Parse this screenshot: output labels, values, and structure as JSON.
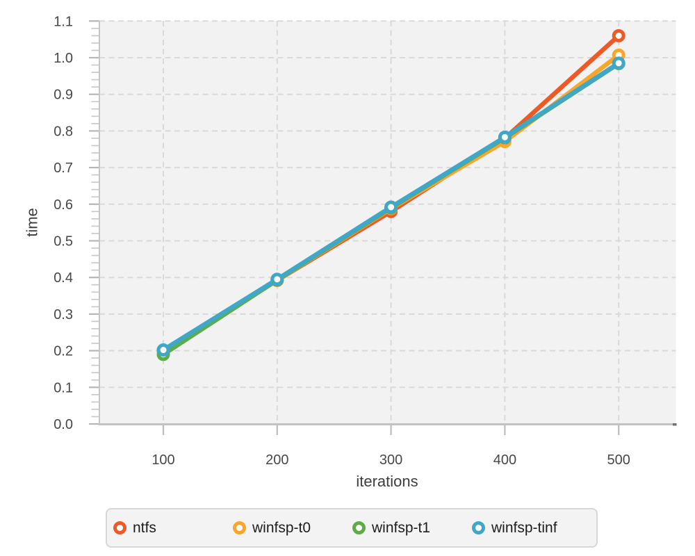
{
  "chart_data": {
    "type": "line",
    "title": "",
    "xlabel": "iterations",
    "ylabel": "time",
    "x": [
      100,
      200,
      300,
      400,
      500
    ],
    "xtick_labels": [
      "100",
      "200",
      "300",
      "400",
      "500"
    ],
    "ytick_labels": [
      "0.0",
      "0.1",
      "0.2",
      "0.3",
      "0.4",
      "0.5",
      "0.6",
      "0.7",
      "0.8",
      "0.9",
      "1.0",
      "1.1"
    ],
    "xlim": [
      44,
      551
    ],
    "ylim": [
      0,
      1.1
    ],
    "y_minor_tick_step": 0.02,
    "grid": "dashed",
    "legend_position": "bottom",
    "marker": "open-circle",
    "panel_bg": "#f2f2f2",
    "grid_color": "#d9d9d9",
    "series": [
      {
        "name": "ntfs",
        "color": "#ed5a28",
        "values": [
          0.2,
          0.392,
          0.58,
          0.78,
          1.06
        ]
      },
      {
        "name": "winfsp-t0",
        "color": "#f8a72c",
        "values": [
          0.2,
          0.392,
          0.588,
          0.771,
          1.007
        ]
      },
      {
        "name": "winfsp-t1",
        "color": "#5cad48",
        "values": [
          0.19,
          0.393,
          0.59,
          0.781,
          0.984
        ]
      },
      {
        "name": "winfsp-tinf",
        "color": "#41a7c6",
        "values": [
          0.202,
          0.395,
          0.592,
          0.783,
          0.985
        ]
      }
    ]
  }
}
